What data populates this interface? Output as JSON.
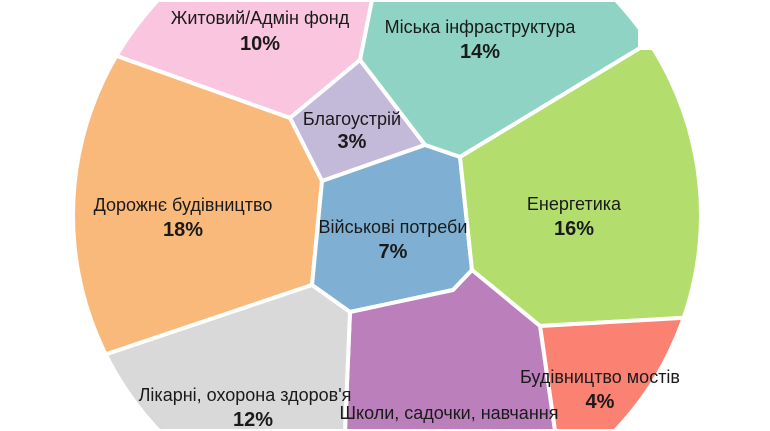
{
  "chart_data": {
    "type": "voronoi-treemap",
    "title": "",
    "items": [
      {
        "label": "Житовий/Адмін фонд",
        "value": 10,
        "value_label": "10%",
        "color": "#f9c5df"
      },
      {
        "label": "Міська інфраструктура",
        "value": 14,
        "value_label": "14%",
        "color": "#8fd3c4"
      },
      {
        "label": "Благоустрій",
        "value": 3,
        "value_label": "3%",
        "color": "#c3bada"
      },
      {
        "label": "Дорожнє будівництво",
        "value": 18,
        "value_label": "18%",
        "color": "#f9b97a"
      },
      {
        "label": "Військові потреби",
        "value": 7,
        "value_label": "7%",
        "color": "#7fb0d3"
      },
      {
        "label": "Енергетика",
        "value": 16,
        "value_label": "16%",
        "color": "#b3de6e"
      },
      {
        "label": "Будівництво мостів",
        "value": 4,
        "value_label": "4%",
        "color": "#fb8172"
      },
      {
        "label": "Школи, садочки, навчання",
        "value": "",
        "value_label": "",
        "color": "#bb80bc"
      },
      {
        "label": "Лікарні, охорона здоров'я",
        "value": 12,
        "value_label": "12%",
        "color": "#d9d9d9"
      }
    ]
  }
}
